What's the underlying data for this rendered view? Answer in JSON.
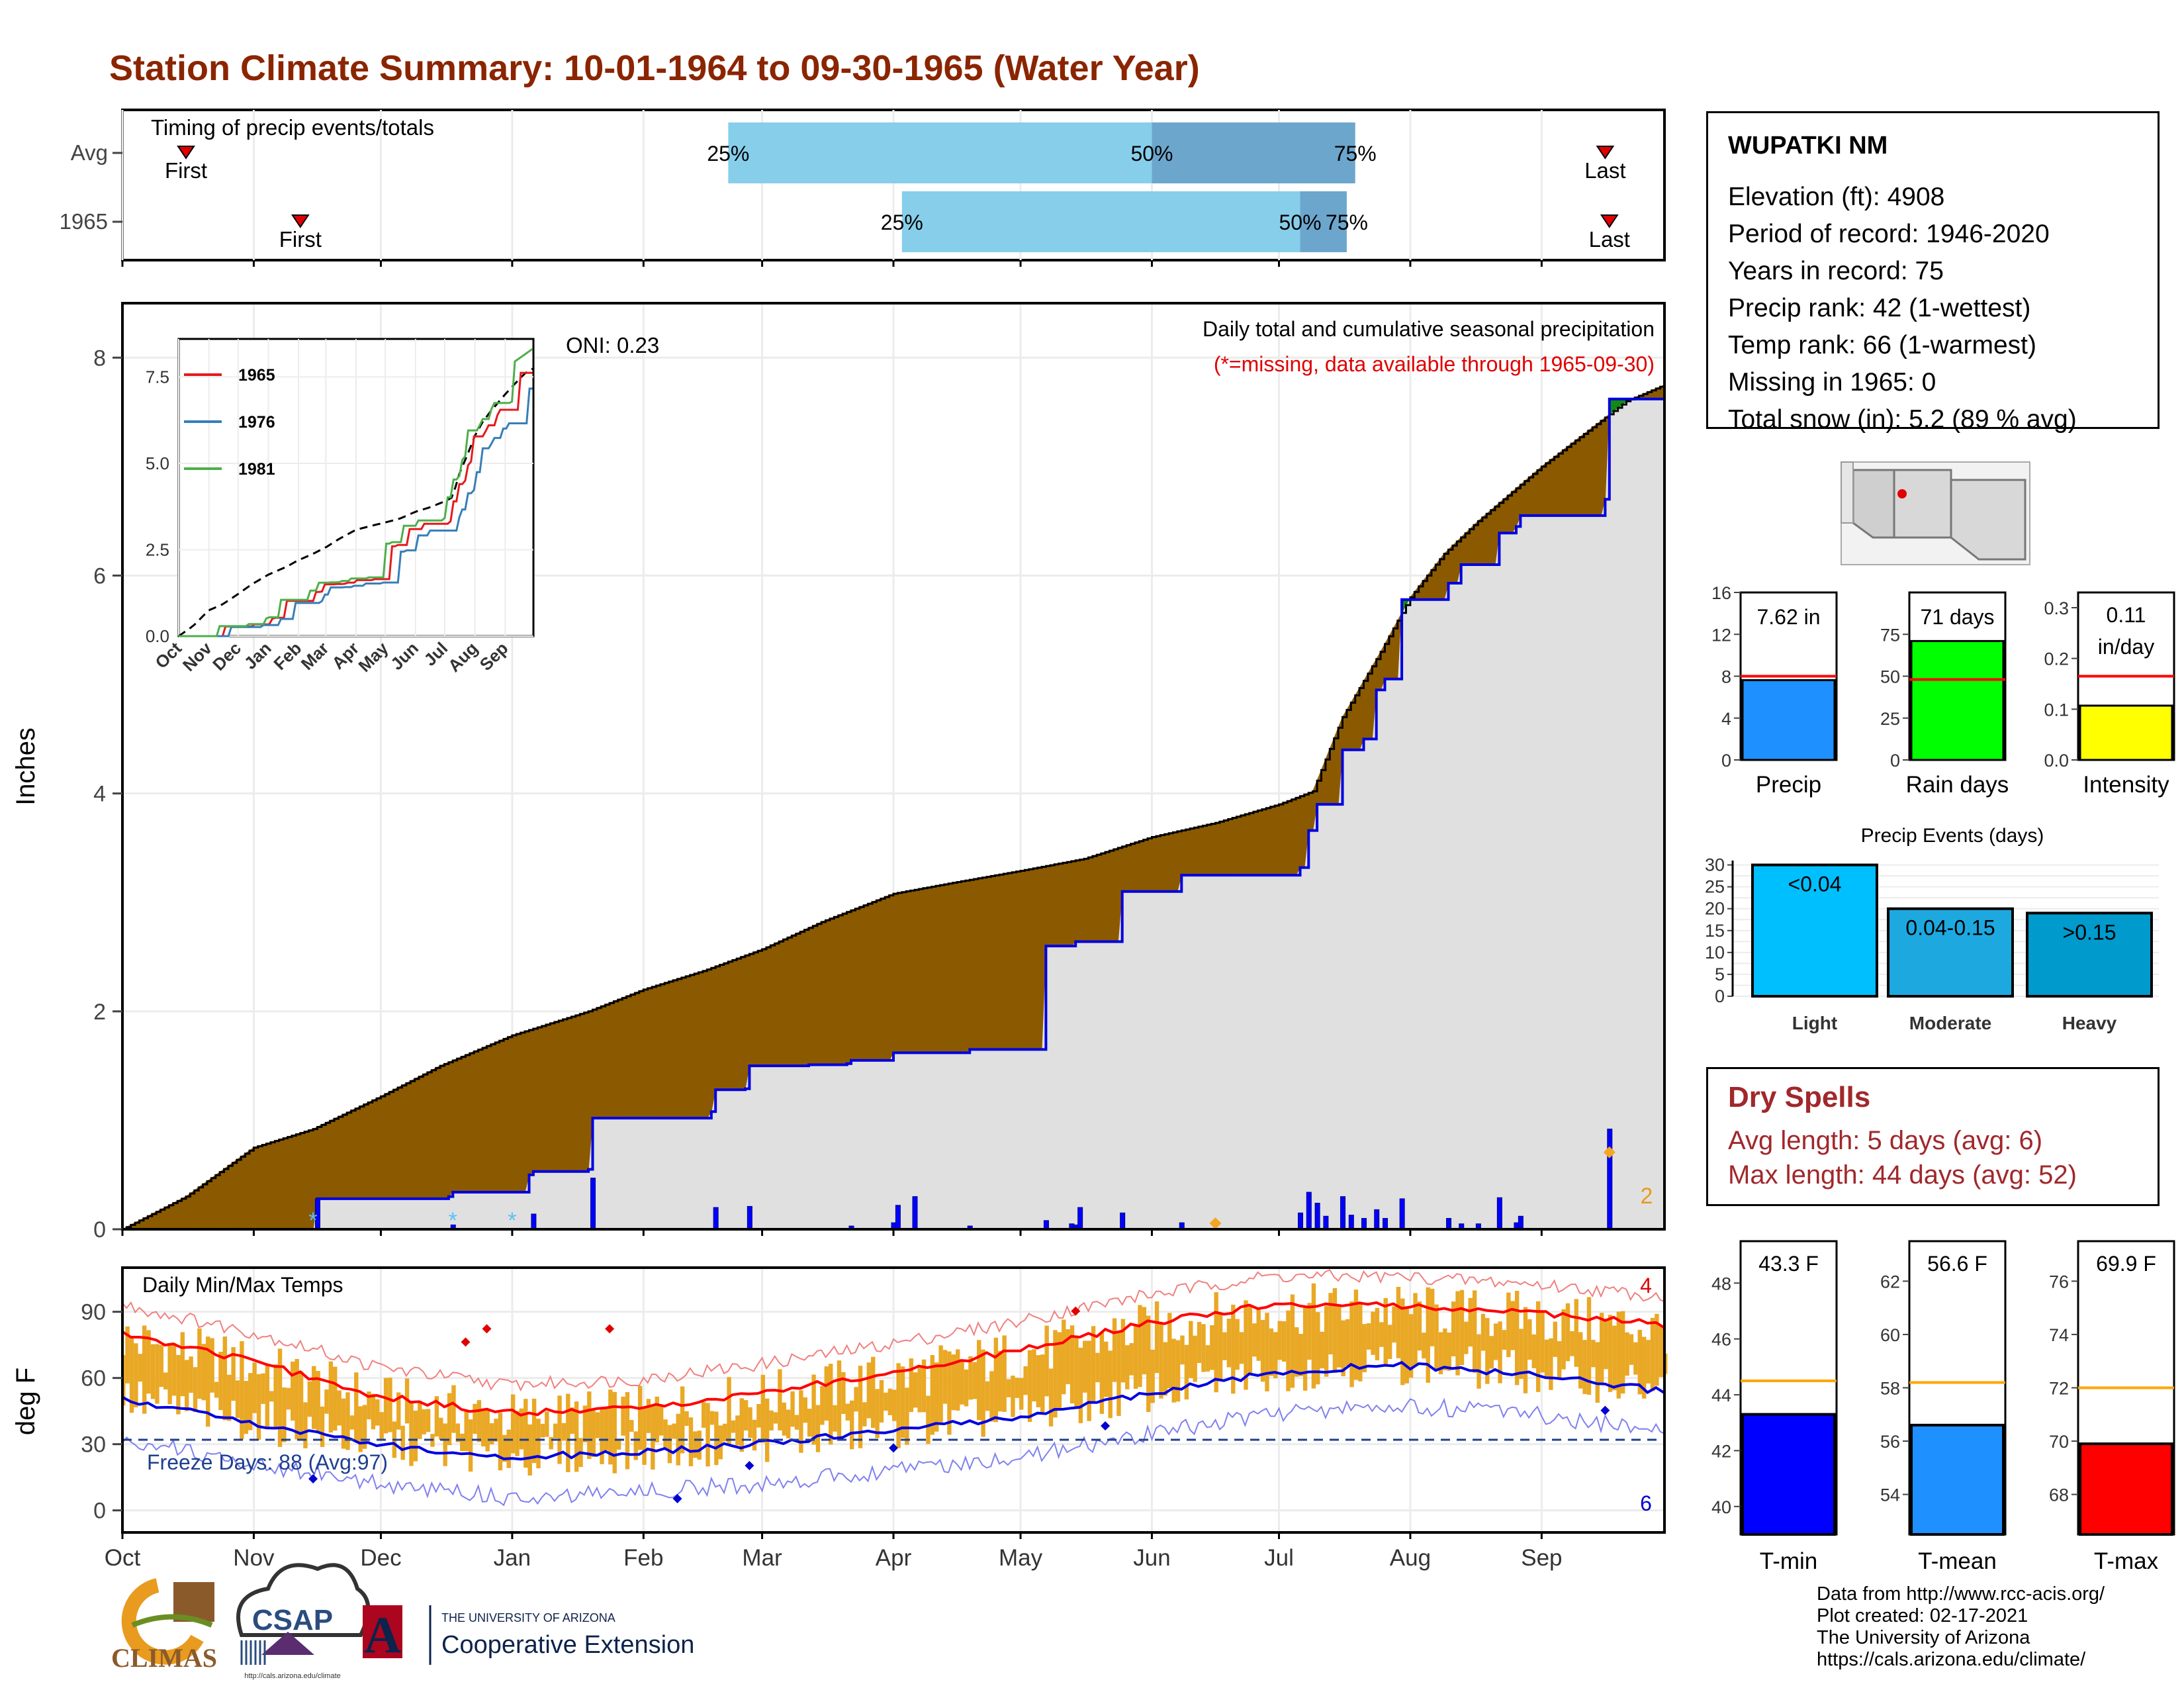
{
  "title": "Station Climate Summary: 10-01-1964 to 09-30-1965 (Water Year)",
  "colors": {
    "title": "#8B2500",
    "deficit": "#8B5A00",
    "surplus": "#138A13",
    "avg_cumulative_fill": "#E0E0E0",
    "precip_bars": "#0000FF",
    "temp_bars": "#E9A825",
    "tmax_avg": "#FF0000",
    "tmin_avg": "#0000E0",
    "freeze_line": "#1F3F8F",
    "quartile_light": "#87CEEB",
    "quartile_dark": "#6CA6CD"
  },
  "timing_panel": {
    "label": "Timing of precip events/totals",
    "rows": [
      {
        "name": "Avg",
        "q25_label": "25%",
        "q50_label": "50%",
        "q75_label": "75%",
        "q25": 143,
        "q50": 243,
        "q75": 291,
        "first": 15,
        "last": 350,
        "first_label": "First",
        "last_label": "Last"
      },
      {
        "name": "1965",
        "q25_label": "25%",
        "q50_label": "50%",
        "q75_label": "75%",
        "q25": 184,
        "q50": 278,
        "q75": 289,
        "first": 42,
        "last": 351,
        "first_label": "First",
        "last_label": "Last"
      }
    ]
  },
  "main_panel": {
    "subtitle": "Daily total and cumulative seasonal precipitation",
    "missing_note": "(*=missing, data available through 1965-09-30)",
    "oni": "ONI: 0.23",
    "y_label": "Inches",
    "y_ticks": [
      "0",
      "2",
      "4",
      "6",
      "8"
    ],
    "corner_count": "2"
  },
  "inset": {
    "y_ticks": [
      "0.0",
      "2.5",
      "5.0",
      "7.5"
    ],
    "x_ticks": [
      "Oct",
      "Nov",
      "Dec",
      "Jan",
      "Feb",
      "Mar",
      "Apr",
      "May",
      "Jun",
      "Jul",
      "Aug",
      "Sep"
    ],
    "legend": [
      {
        "name": "1965",
        "color": "#E41A1C"
      },
      {
        "name": "1976",
        "color": "#377EB8"
      },
      {
        "name": "1981",
        "color": "#4DAF4A"
      }
    ]
  },
  "temp_panel": {
    "label": "Daily Min/Max Temps",
    "y_label": "deg F",
    "y_ticks": [
      "0",
      "30",
      "60",
      "90"
    ],
    "freeze_label": "Freeze Days: 88 (Avg:97)",
    "count_high": "4",
    "count_low": "6"
  },
  "month_labels": [
    "Oct",
    "Nov",
    "Dec",
    "Jan",
    "Feb",
    "Mar",
    "Apr",
    "May",
    "Jun",
    "Jul",
    "Aug",
    "Sep"
  ],
  "station": {
    "name": "WUPATKI NM",
    "lines": [
      "Elevation (ft): 4908",
      "Period of record: 1946-2020",
      "Years in record: 75",
      "Precip rank: 42 (1-wettest)",
      "Temp rank: 66 (1-warmest)",
      "Missing in 1965: 0",
      "Total snow (in): 5.2 (89 % avg)"
    ]
  },
  "mini_bars": [
    {
      "label": "Precip",
      "value_label": "7.62 in",
      "value": 7.62,
      "avg": 8.0,
      "ymax": 16,
      "ticks": [
        "0",
        "4",
        "8",
        "12",
        "16"
      ],
      "tick_vals": [
        0,
        4,
        8,
        12,
        16
      ],
      "color": "#1E90FF"
    },
    {
      "label": "Rain days",
      "value_label": "71 days",
      "value": 71,
      "avg": 48,
      "ymax": 100,
      "ticks": [
        "0",
        "25",
        "50",
        "75"
      ],
      "tick_vals": [
        0,
        25,
        50,
        75
      ],
      "color": "#00FF00"
    },
    {
      "label": "Intensity",
      "value_label": "0.11 in/day",
      "value": 0.107,
      "avg": 0.165,
      "ymax": 0.33,
      "ticks": [
        "0.0",
        "0.1",
        "0.2",
        "0.3"
      ],
      "tick_vals": [
        0,
        0.1,
        0.2,
        0.3
      ],
      "color": "#FFFF00"
    }
  ],
  "precip_events": {
    "title": "Precip Events (days)",
    "ticks": [
      "0",
      "5",
      "10",
      "15",
      "20",
      "25",
      "30"
    ],
    "bars": [
      {
        "label": "Light",
        "value_label": "<0.04",
        "value": 30,
        "color": "#00BFFF"
      },
      {
        "label": "Moderate",
        "value_label": "0.04-0.15",
        "value": 20,
        "color": "#1EA8E0"
      },
      {
        "label": "Heavy",
        "value_label": ">0.15",
        "value": 19,
        "color": "#009ACD"
      }
    ]
  },
  "dry_spells": {
    "title": "Dry Spells",
    "avg_length": "Avg length: 5 days (avg: 6)",
    "max_length": "Max length: 44 days (avg: 52)"
  },
  "temp_bars": [
    {
      "label": "T-min",
      "value_label": "43.3 F",
      "value": 43.3,
      "avg": 44.5,
      "ymin": 39,
      "ymax": 49.5,
      "ticks": [
        "40",
        "42",
        "44",
        "46",
        "48"
      ],
      "tick_vals": [
        40,
        42,
        44,
        46,
        48
      ],
      "color": "#0000FF"
    },
    {
      "label": "T-mean",
      "value_label": "56.6 F",
      "value": 56.6,
      "avg": 58.2,
      "ymin": 52.5,
      "ymax": 63.5,
      "ticks": [
        "54",
        "56",
        "58",
        "60",
        "62"
      ],
      "tick_vals": [
        54,
        56,
        58,
        60,
        62
      ],
      "color": "#1E90FF"
    },
    {
      "label": "T-max",
      "value_label": "69.9 F",
      "value": 69.9,
      "avg": 72.0,
      "ymin": 66.5,
      "ymax": 77.5,
      "ticks": [
        "68",
        "70",
        "72",
        "74",
        "76"
      ],
      "tick_vals": [
        68,
        70,
        72,
        74,
        76
      ],
      "color": "#FF0000"
    }
  ],
  "logos": {
    "climas": "CLIMAS",
    "csap": "CSAP",
    "csap_url": "http://cals.arizona.edu/climate",
    "ua_small": "THE UNIVERSITY OF ARIZONA",
    "ua_big": "Cooperative Extension",
    "ua_letter": "A"
  },
  "credits": [
    "Data from http://www.rcc-acis.org/",
    "Plot created: 02-17-2021",
    "The University of Arizona",
    "https://cals.arizona.edu/climate/"
  ],
  "chart_data": {
    "type": "area",
    "title": "Station Climate Summary: 10-01-1964 to 09-30-1965 (Water Year)",
    "ylabel": "Inches",
    "ylim": [
      0,
      8.5
    ],
    "x_unit": "day of water year (0 = Oct 1)",
    "xlim": [
      0,
      364
    ],
    "month_starts": [
      0,
      31,
      61,
      92,
      123,
      151,
      182,
      212,
      243,
      273,
      304,
      335
    ],
    "series": [
      {
        "name": "avg_cumulative",
        "x": [
          0,
          15,
          31,
          45,
          61,
          75,
          92,
          110,
          123,
          137,
          151,
          165,
          182,
          196,
          212,
          227,
          243,
          258,
          273,
          281,
          288,
          297,
          304,
          312,
          320,
          335,
          345,
          355,
          364
        ],
        "values": [
          0,
          0.3,
          0.75,
          0.92,
          1.22,
          1.5,
          1.78,
          2.0,
          2.2,
          2.37,
          2.57,
          2.82,
          3.08,
          3.18,
          3.29,
          3.4,
          3.6,
          3.73,
          3.9,
          4.02,
          4.7,
          5.3,
          5.8,
          6.2,
          6.5,
          7.0,
          7.3,
          7.6,
          7.75
        ]
      },
      {
        "name": "cumulative_1965",
        "x": [
          0,
          45,
          46,
          77,
          78,
          96,
          97,
          110,
          111,
          139,
          140,
          147,
          148,
          162,
          171,
          172,
          182,
          200,
          218,
          224,
          225,
          236,
          250,
          278,
          280,
          282,
          288,
          293,
          296,
          298,
          302,
          304,
          313,
          316,
          325,
          329,
          330,
          350,
          351,
          354,
          364
        ],
        "values": [
          0,
          0,
          0.28,
          0.3,
          0.34,
          0.5,
          0.53,
          0.55,
          1.02,
          1.08,
          1.28,
          1.29,
          1.5,
          1.51,
          1.52,
          1.55,
          1.62,
          1.65,
          2.6,
          2.6,
          2.64,
          3.1,
          3.25,
          3.32,
          3.66,
          3.9,
          4.4,
          4.5,
          4.95,
          5.05,
          5.78,
          5.78,
          5.93,
          6.1,
          6.39,
          6.45,
          6.55,
          6.7,
          7.62,
          7.62,
          7.62
        ]
      },
      {
        "name": "daily_precip_1965",
        "x": [
          46,
          78,
          97,
          111,
          140,
          148,
          172,
          182,
          183,
          187,
          200,
          218,
          224,
          225,
          226,
          236,
          250,
          278,
          280,
          282,
          284,
          288,
          290,
          293,
          296,
          298,
          302,
          313,
          316,
          320,
          325,
          329,
          330,
          351
        ],
        "values": [
          0.28,
          0.04,
          0.14,
          0.47,
          0.2,
          0.21,
          0.03,
          0.06,
          0.22,
          0.3,
          0.03,
          0.08,
          0.05,
          0.04,
          0.2,
          0.15,
          0.06,
          0.15,
          0.34,
          0.24,
          0.12,
          0.3,
          0.13,
          0.1,
          0.18,
          0.1,
          0.28,
          0.1,
          0.05,
          0.05,
          0.29,
          0.06,
          0.12,
          0.92
        ]
      }
    ],
    "temperature": {
      "ylabel": "deg F",
      "ylim": [
        -10,
        110
      ],
      "tmax_avg": {
        "x": [
          0,
          30,
          60,
          90,
          120,
          150,
          180,
          210,
          240,
          270,
          300,
          330,
          364
        ],
        "values": [
          80,
          68,
          52,
          44,
          46,
          53,
          62,
          72,
          84,
          93,
          93,
          90,
          84
        ]
      },
      "tmin_avg": {
        "x": [
          0,
          30,
          60,
          90,
          120,
          150,
          180,
          210,
          240,
          270,
          300,
          330,
          364
        ],
        "values": [
          50,
          40,
          30,
          24,
          26,
          30,
          36,
          42,
          52,
          62,
          66,
          62,
          54
        ]
      },
      "freeze_line": 32
    }
  }
}
